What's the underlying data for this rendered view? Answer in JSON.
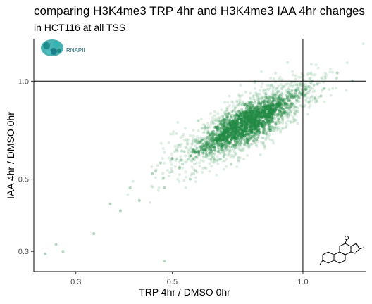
{
  "chart_data": {
    "type": "scatter",
    "title": "comparing H3K4me3 TRP 4hr and H3K4me3 IAA 4hr changes",
    "subtitle": "in HCT116 at all TSS",
    "xlabel": "TRP 4hr / DMSO 0hr",
    "ylabel": "IAA 4hr / DMSO 0hr",
    "x_scale": "log",
    "y_scale": "log",
    "xlim": [
      0.24,
      1.4
    ],
    "ylim": [
      0.26,
      1.35
    ],
    "x_ticks": [
      0.3,
      0.5,
      1.0
    ],
    "x_tick_labels": [
      "0.3",
      "0.5",
      "1.0"
    ],
    "y_ticks": [
      0.3,
      0.5,
      1.0
    ],
    "y_tick_labels": [
      "0.3",
      "0.5",
      "1.0"
    ],
    "reference_lines": {
      "x": 1.0,
      "y": 1.0
    },
    "grid": false,
    "point_color": "#238b45",
    "cloud": {
      "center_x": 0.74,
      "center_y": 0.74,
      "n_points": 2200
    },
    "points": [
      {
        "x": 0.255,
        "y": 0.295
      },
      {
        "x": 0.27,
        "y": 0.315
      },
      {
        "x": 0.28,
        "y": 0.3
      },
      {
        "x": 0.33,
        "y": 0.34
      },
      {
        "x": 0.36,
        "y": 0.42
      },
      {
        "x": 0.38,
        "y": 0.4
      },
      {
        "x": 0.4,
        "y": 0.47
      },
      {
        "x": 0.42,
        "y": 0.43
      },
      {
        "x": 0.45,
        "y": 0.52
      },
      {
        "x": 0.48,
        "y": 0.47
      },
      {
        "x": 0.5,
        "y": 0.58
      },
      {
        "x": 0.52,
        "y": 0.54
      },
      {
        "x": 0.47,
        "y": 0.56
      },
      {
        "x": 0.55,
        "y": 0.5
      },
      {
        "x": 0.58,
        "y": 0.65
      },
      {
        "x": 1.05,
        "y": 1.0
      },
      {
        "x": 1.08,
        "y": 0.98
      },
      {
        "x": 1.12,
        "y": 0.95
      },
      {
        "x": 1.2,
        "y": 1.06
      },
      {
        "x": 1.3,
        "y": 1.0
      },
      {
        "x": 1.1,
        "y": 0.9
      },
      {
        "x": 0.48,
        "y": 0.28
      }
    ]
  },
  "logos": {
    "top_left": {
      "icon": "rna-polymerase-ii-icon",
      "label": "RNAPII"
    },
    "bottom_right": {
      "icon": "steroid-molecule-icon"
    }
  }
}
